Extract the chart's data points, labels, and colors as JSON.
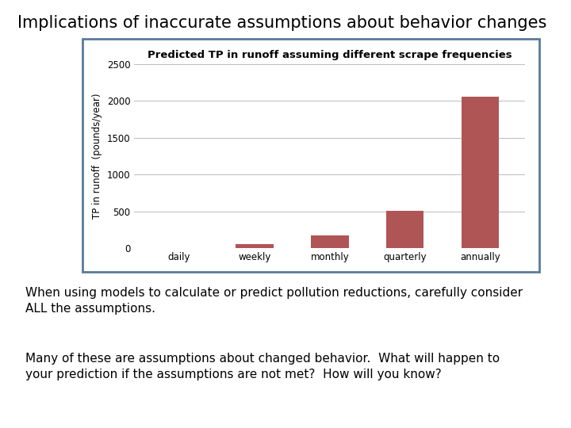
{
  "slide_title": "Implications of inaccurate assumptions about behavior changes",
  "chart_title": "Predicted TP in runoff assuming different scrape frequencies",
  "ylabel": "TP in runoff  (pounds/year)",
  "categories": [
    "daily",
    "weekly",
    "monthly",
    "quarterly",
    "annually"
  ],
  "values": [
    5,
    55,
    170,
    510,
    2060
  ],
  "bar_color": "#B05555",
  "ylim": [
    0,
    2500
  ],
  "yticks": [
    0,
    500,
    1000,
    1500,
    2000,
    2500
  ],
  "chart_border_color": "#5A7A9A",
  "background_color": "#ffffff",
  "text1": "When using models to calculate or predict pollution reductions, carefully consider\nALL the assumptions.",
  "text2": "Many of these are assumptions about changed behavior.  What will happen to\nyour prediction if the assumptions are not met?  How will you know?",
  "slide_title_fontsize": 15,
  "chart_title_fontsize": 9.5,
  "ylabel_fontsize": 8.5,
  "tick_fontsize": 8.5,
  "body_text_fontsize": 11
}
